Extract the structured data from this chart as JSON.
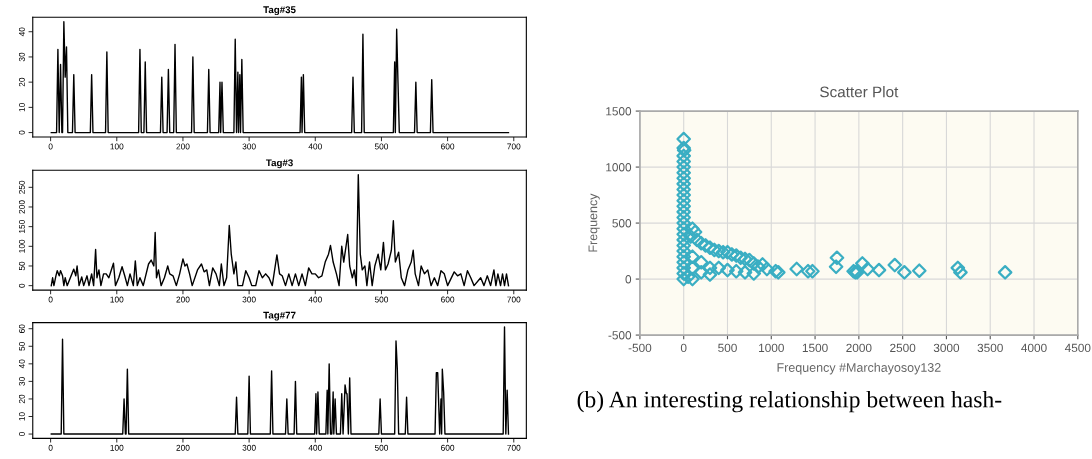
{
  "chart_data": [
    {
      "type": "line",
      "title": "Tag#35",
      "xlim": [
        -27,
        719
      ],
      "ylim": [
        -1.76,
        45.76
      ],
      "xticks": [
        0,
        100,
        200,
        300,
        400,
        500,
        600,
        700
      ],
      "yticks": [
        0,
        10,
        20,
        30,
        40
      ],
      "grid": false,
      "legend": false,
      "series": [
        {
          "color": "#000000",
          "x": [
            1,
            9,
            11,
            13,
            15,
            17,
            18,
            20,
            22,
            24,
            26,
            33,
            35,
            37,
            60,
            62,
            64,
            83,
            85,
            87,
            133,
            135,
            137,
            141,
            143,
            145,
            166,
            168,
            170,
            176,
            178,
            180,
            186,
            188,
            190,
            213,
            215,
            217,
            237,
            239,
            241,
            254,
            256,
            257,
            259,
            261,
            277,
            279,
            281,
            283,
            284,
            286,
            287,
            289,
            291,
            377,
            379,
            380,
            382,
            384,
            455,
            457,
            459,
            470,
            472,
            474,
            518,
            520,
            521,
            523,
            525,
            527,
            550,
            552,
            554,
            574,
            576,
            578,
            692
          ],
          "values": [
            0,
            0,
            33,
            0,
            27,
            0,
            0,
            44,
            22,
            34,
            0,
            0,
            23,
            0,
            0,
            23,
            0,
            0,
            32,
            0,
            0,
            33,
            0,
            0,
            28,
            0,
            0,
            22,
            0,
            0,
            25,
            0,
            0,
            35,
            0,
            0,
            30,
            0,
            0,
            25,
            0,
            0,
            20,
            0,
            20,
            0,
            0,
            37,
            0,
            24,
            0,
            23,
            0,
            29,
            0,
            0,
            22,
            0,
            23,
            0,
            0,
            22,
            0,
            0,
            39,
            0,
            0,
            28,
            0,
            41,
            20,
            0,
            0,
            20,
            0,
            0,
            21,
            0,
            0
          ]
        }
      ]
    },
    {
      "type": "line",
      "title": "Tag#3",
      "xlim": [
        -27,
        719
      ],
      "ylim": [
        -11.3,
        293.3
      ],
      "xticks": [
        0,
        100,
        200,
        300,
        400,
        500,
        600,
        700
      ],
      "yticks": [
        0,
        50,
        100,
        150,
        200,
        250
      ],
      "grid": false,
      "legend": false,
      "series": [
        {
          "color": "#000000",
          "x": [
            1,
            3,
            5,
            8,
            10,
            13,
            15,
            18,
            20,
            22,
            25,
            35,
            38,
            40,
            43,
            47,
            50,
            55,
            58,
            62,
            65,
            68,
            70,
            73,
            76,
            80,
            84,
            88,
            95,
            98,
            103,
            108,
            112,
            116,
            120,
            125,
            128,
            131,
            135,
            140,
            148,
            152,
            156,
            158,
            160,
            163,
            167,
            172,
            177,
            180,
            185,
            190,
            195,
            200,
            203,
            206,
            210,
            214,
            222,
            228,
            232,
            236,
            240,
            245,
            250,
            255,
            258,
            262,
            266,
            270,
            273,
            277,
            280,
            283,
            290,
            295,
            300,
            304,
            310,
            315,
            320,
            325,
            330,
            335,
            342,
            346,
            350,
            355,
            360,
            365,
            370,
            375,
            380,
            385,
            390,
            395,
            400,
            405,
            410,
            415,
            420,
            423,
            427,
            432,
            436,
            440,
            443,
            446,
            449,
            452,
            456,
            459,
            462,
            465,
            468,
            471,
            475,
            478,
            482,
            486,
            490,
            495,
            499,
            503,
            506,
            510,
            515,
            518,
            521,
            526,
            530,
            535,
            540,
            545,
            548,
            551,
            556,
            560,
            565,
            570,
            575,
            580,
            585,
            590,
            595,
            600,
            610,
            615,
            620,
            625,
            630,
            635,
            640,
            650,
            655,
            660,
            665,
            670,
            673,
            676,
            680,
            683,
            686,
            689,
            692
          ],
          "values": [
            0,
            20,
            0,
            25,
            38,
            25,
            38,
            25,
            0,
            20,
            0,
            42,
            25,
            50,
            0,
            22,
            0,
            25,
            0,
            30,
            0,
            92,
            20,
            40,
            0,
            30,
            30,
            20,
            57,
            0,
            20,
            48,
            25,
            0,
            30,
            0,
            63,
            0,
            20,
            0,
            55,
            65,
            50,
            135,
            20,
            40,
            0,
            20,
            50,
            30,
            25,
            0,
            30,
            68,
            50,
            55,
            30,
            0,
            40,
            55,
            35,
            40,
            0,
            45,
            30,
            0,
            55,
            0,
            20,
            153,
            80,
            30,
            60,
            0,
            0,
            38,
            20,
            0,
            0,
            38,
            20,
            30,
            20,
            0,
            78,
            30,
            25,
            0,
            30,
            0,
            30,
            0,
            30,
            0,
            45,
            30,
            30,
            20,
            25,
            60,
            80,
            102,
            60,
            30,
            0,
            100,
            60,
            95,
            130,
            50,
            20,
            40,
            0,
            282,
            80,
            40,
            50,
            0,
            60,
            0,
            50,
            80,
            40,
            110,
            40,
            55,
            90,
            165,
            60,
            85,
            20,
            0,
            40,
            60,
            90,
            30,
            0,
            50,
            30,
            40,
            0,
            20,
            0,
            38,
            30,
            0,
            35,
            25,
            30,
            0,
            38,
            20,
            0,
            20,
            0,
            25,
            0,
            40,
            0,
            30,
            0,
            30,
            0,
            30,
            0
          ]
        }
      ]
    },
    {
      "type": "line",
      "title": "Tag#77",
      "xlim": [
        -27,
        719
      ],
      "ylim": [
        -2.44,
        63.44
      ],
      "xticks": [
        0,
        100,
        200,
        300,
        400,
        500,
        600,
        700
      ],
      "yticks": [
        0,
        10,
        20,
        30,
        40,
        50,
        60
      ],
      "grid": false,
      "legend": false,
      "series": [
        {
          "color": "#000000",
          "x": [
            1,
            16,
            18,
            20,
            109,
            111,
            113,
            114,
            116,
            118,
            279,
            281,
            283,
            298,
            300,
            302,
            332,
            334,
            336,
            355,
            357,
            359,
            368,
            370,
            372,
            399,
            401,
            402,
            404,
            406,
            416,
            418,
            419,
            421,
            423,
            425,
            427,
            428,
            430,
            432,
            438,
            440,
            442,
            445,
            447,
            448,
            450,
            452,
            454,
            496,
            498,
            500,
            520,
            522,
            524,
            526,
            536,
            538,
            540,
            581,
            583,
            585,
            588,
            590,
            591,
            592,
            594,
            596,
            684,
            686,
            688,
            690,
            692
          ],
          "values": [
            0,
            0,
            54,
            0,
            0,
            20,
            0,
            0,
            37,
            0,
            0,
            21,
            0,
            0,
            33,
            0,
            0,
            36,
            0,
            0,
            20,
            0,
            0,
            30,
            0,
            0,
            23,
            0,
            24,
            0,
            0,
            25,
            0,
            40,
            0,
            0,
            24,
            0,
            20,
            0,
            0,
            23,
            0,
            28,
            23,
            23,
            0,
            32,
            0,
            0,
            20,
            0,
            0,
            53,
            37,
            0,
            0,
            21,
            0,
            0,
            35,
            35,
            0,
            20,
            0,
            37,
            24,
            0,
            0,
            61,
            0,
            25,
            0
          ]
        }
      ]
    },
    {
      "type": "scatter",
      "title": "Scatter Plot",
      "xlabel": "Frequency #Marchayosoy132",
      "ylabel": "Frequency",
      "xlim": [
        -500,
        4500
      ],
      "ylim": [
        -500,
        1500
      ],
      "xticks": [
        -500,
        0,
        500,
        1000,
        1500,
        2000,
        2500,
        3000,
        3500,
        4000,
        4500
      ],
      "yticks": [
        -500,
        0,
        500,
        1000,
        1500
      ],
      "grid": true,
      "legend": false,
      "marker": "diamond",
      "annotations": [
        "(b) An interesting relationship between hash-"
      ],
      "series": [
        {
          "color": "#3aaec3",
          "x": [
            0,
            0,
            5,
            0,
            0,
            0,
            0,
            0,
            0,
            0,
            0,
            0,
            0,
            0,
            0,
            0,
            0,
            0,
            0,
            0,
            0,
            0,
            0,
            0,
            0,
            0,
            100,
            130,
            80,
            150,
            200,
            250,
            300,
            350,
            400,
            450,
            500,
            550,
            600,
            650,
            700,
            750,
            800,
            850,
            900,
            950,
            1050,
            1080,
            100,
            200,
            300,
            400,
            500,
            600,
            700,
            800,
            100,
            200,
            300,
            50,
            100,
            1290,
            1420,
            1470,
            1740,
            1750,
            1940,
            1960,
            1980,
            2040,
            2100,
            2230,
            2410,
            2520,
            2690,
            3130,
            3160,
            3670
          ],
          "values": [
            1250,
            1170,
            1150,
            1100,
            1050,
            1000,
            950,
            900,
            850,
            800,
            750,
            700,
            650,
            600,
            550,
            500,
            450,
            400,
            350,
            300,
            250,
            200,
            150,
            100,
            50,
            0,
            450,
            420,
            380,
            350,
            320,
            300,
            280,
            260,
            250,
            240,
            240,
            220,
            210,
            190,
            180,
            170,
            140,
            110,
            130,
            90,
            70,
            60,
            200,
            150,
            100,
            100,
            80,
            70,
            60,
            50,
            100,
            60,
            40,
            20,
            0,
            90,
            70,
            70,
            110,
            190,
            70,
            60,
            60,
            140,
            90,
            80,
            125,
            60,
            75,
            100,
            60,
            60
          ]
        }
      ]
    }
  ]
}
